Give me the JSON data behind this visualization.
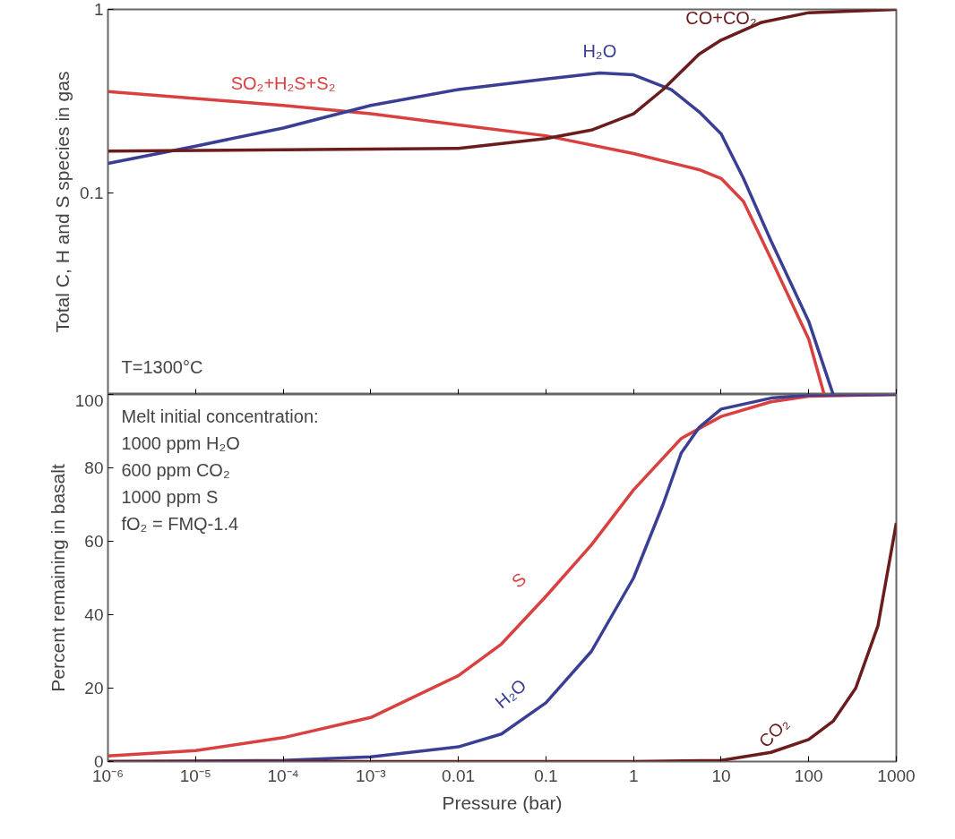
{
  "chart_data": [
    {
      "type": "line",
      "ylabel": "Total C, H and S species in gas",
      "log": "xy",
      "xlim": [
        1e-06,
        1000
      ],
      "xticks": [
        1e-06,
        1e-05,
        0.0001,
        0.001,
        0.01,
        0.1,
        1,
        10,
        100,
        1000
      ],
      "ylim": [
        0.008,
        1
      ],
      "yticks": [
        0.1,
        1
      ],
      "tick_labels": "y",
      "grid": false,
      "annotations": [
        "T=1300°C"
      ],
      "series": [
        {
          "name": "SO₂+H₂S+S₂",
          "color": "#d94040",
          "x": [
            1e-06,
            0.0001,
            0.001,
            0.01,
            0.1,
            1,
            5.6,
            10,
            18,
            37,
            100,
            150
          ],
          "values": [
            0.357,
            0.3,
            0.27,
            0.235,
            0.205,
            0.164,
            0.134,
            0.12,
            0.09,
            0.044,
            0.016,
            0.008
          ]
        },
        {
          "name": "H₂O",
          "color": "#3a3f94",
          "x": [
            1e-06,
            1e-05,
            0.0001,
            0.001,
            0.01,
            0.1,
            0.41,
            1,
            2.7,
            5.6,
            10,
            18,
            37,
            100,
            190
          ],
          "values": [
            0.145,
            0.18,
            0.226,
            0.3,
            0.366,
            0.418,
            0.45,
            0.44,
            0.366,
            0.277,
            0.21,
            0.12,
            0.055,
            0.02,
            0.008
          ]
        },
        {
          "name": "CO+CO₂",
          "color": "#6b1c1c",
          "x": [
            1e-06,
            0.01,
            0.1,
            0.33,
            1,
            2.17,
            5.6,
            10,
            29,
            100,
            1000
          ],
          "values": [
            0.169,
            0.175,
            0.198,
            0.22,
            0.27,
            0.366,
            0.57,
            0.68,
            0.85,
            0.96,
            1.0
          ]
        }
      ]
    },
    {
      "type": "line",
      "xlabel": "Pressure (bar)",
      "ylabel": "Percent remaining in basalt",
      "log": "x",
      "xlim": [
        1e-06,
        1000
      ],
      "xticks": [
        {
          "value": 1e-06,
          "label": "10⁻⁶"
        },
        {
          "value": 1e-05,
          "label": "10⁻⁵"
        },
        {
          "value": 0.0001,
          "label": "10⁻⁴"
        },
        {
          "value": 0.001,
          "label": "10⁻³"
        },
        0.01,
        0.1,
        1,
        10,
        100,
        1000
      ],
      "ylim": [
        0,
        100
      ],
      "yticks": [
        0,
        20,
        40,
        60,
        80,
        100
      ],
      "grid": false,
      "annotations": [
        "Melt initial concentration:",
        "1000 ppm H₂O",
        "600 ppm CO₂",
        "1000 ppm S",
        "fO₂ = FMQ-1.4"
      ],
      "series": [
        {
          "name": "S",
          "color": "#d94040",
          "x": [
            1e-06,
            1e-05,
            0.0001,
            0.001,
            0.01,
            0.031,
            0.1,
            0.33,
            1,
            3.5,
            10,
            37,
            100,
            1000
          ],
          "values": [
            1.5,
            3,
            6.5,
            12,
            23.4,
            32,
            45,
            59,
            74,
            88,
            94,
            98,
            99.5,
            100
          ]
        },
        {
          "name": "H₂O",
          "color": "#3a3f94",
          "x": [
            1e-06,
            0.0001,
            0.001,
            0.01,
            0.031,
            0.1,
            0.33,
            1,
            2.17,
            3.5,
            5.6,
            10,
            37,
            100,
            1000
          ],
          "values": [
            0,
            0.3,
            1.3,
            4,
            7.5,
            16,
            30,
            50,
            70,
            84,
            91,
            96,
            99,
            99.8,
            100
          ]
        },
        {
          "name": "CO₂",
          "color": "#6b1c1c",
          "x": [
            1e-06,
            1,
            10,
            37,
            100,
            190,
            344,
            617,
            1000
          ],
          "values": [
            0,
            0,
            0.3,
            2.5,
            6,
            11,
            20,
            37,
            65
          ]
        }
      ]
    }
  ]
}
